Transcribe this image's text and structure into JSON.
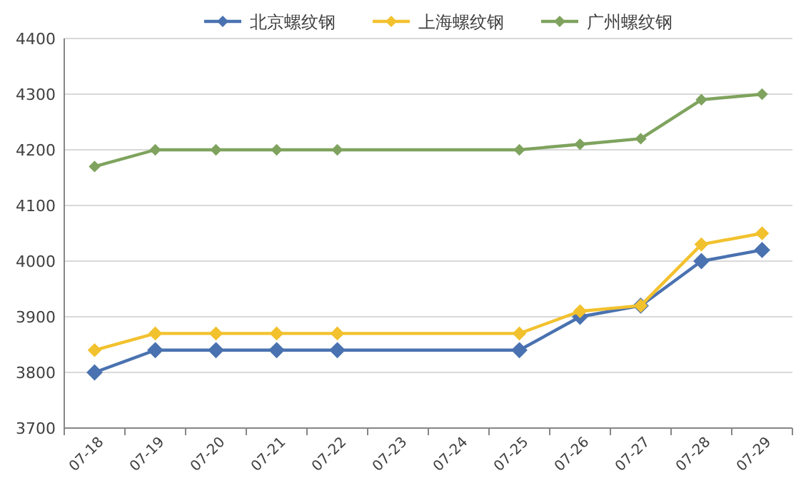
{
  "chart_data": {
    "type": "line",
    "categories": [
      "07-18",
      "07-19",
      "07-20",
      "07-21",
      "07-22",
      "07-23",
      "07-24",
      "07-25",
      "07-26",
      "07-27",
      "07-28",
      "07-29"
    ],
    "series": [
      {
        "name": "北京螺纹钢",
        "color": "#4a72b0",
        "values": [
          3800,
          3840,
          3840,
          3840,
          3840,
          null,
          null,
          3840,
          3900,
          3920,
          4000,
          4020
        ]
      },
      {
        "name": "上海螺纹钢",
        "color": "#f2c12e",
        "values": [
          3840,
          3870,
          3870,
          3870,
          3870,
          null,
          null,
          3870,
          3910,
          3920,
          4030,
          4050
        ]
      },
      {
        "name": "广州螺纹钢",
        "color": "#7fa35e",
        "values": [
          4170,
          4200,
          4200,
          4200,
          4200,
          null,
          null,
          4200,
          4210,
          4220,
          4290,
          4300
        ]
      }
    ],
    "ylim": [
      3700,
      4400
    ],
    "yticks": [
      3700,
      3800,
      3900,
      4000,
      4100,
      4200,
      4300,
      4400
    ],
    "grid": "y",
    "legend": "top",
    "marker": "diamond",
    "line_style": "solid"
  }
}
